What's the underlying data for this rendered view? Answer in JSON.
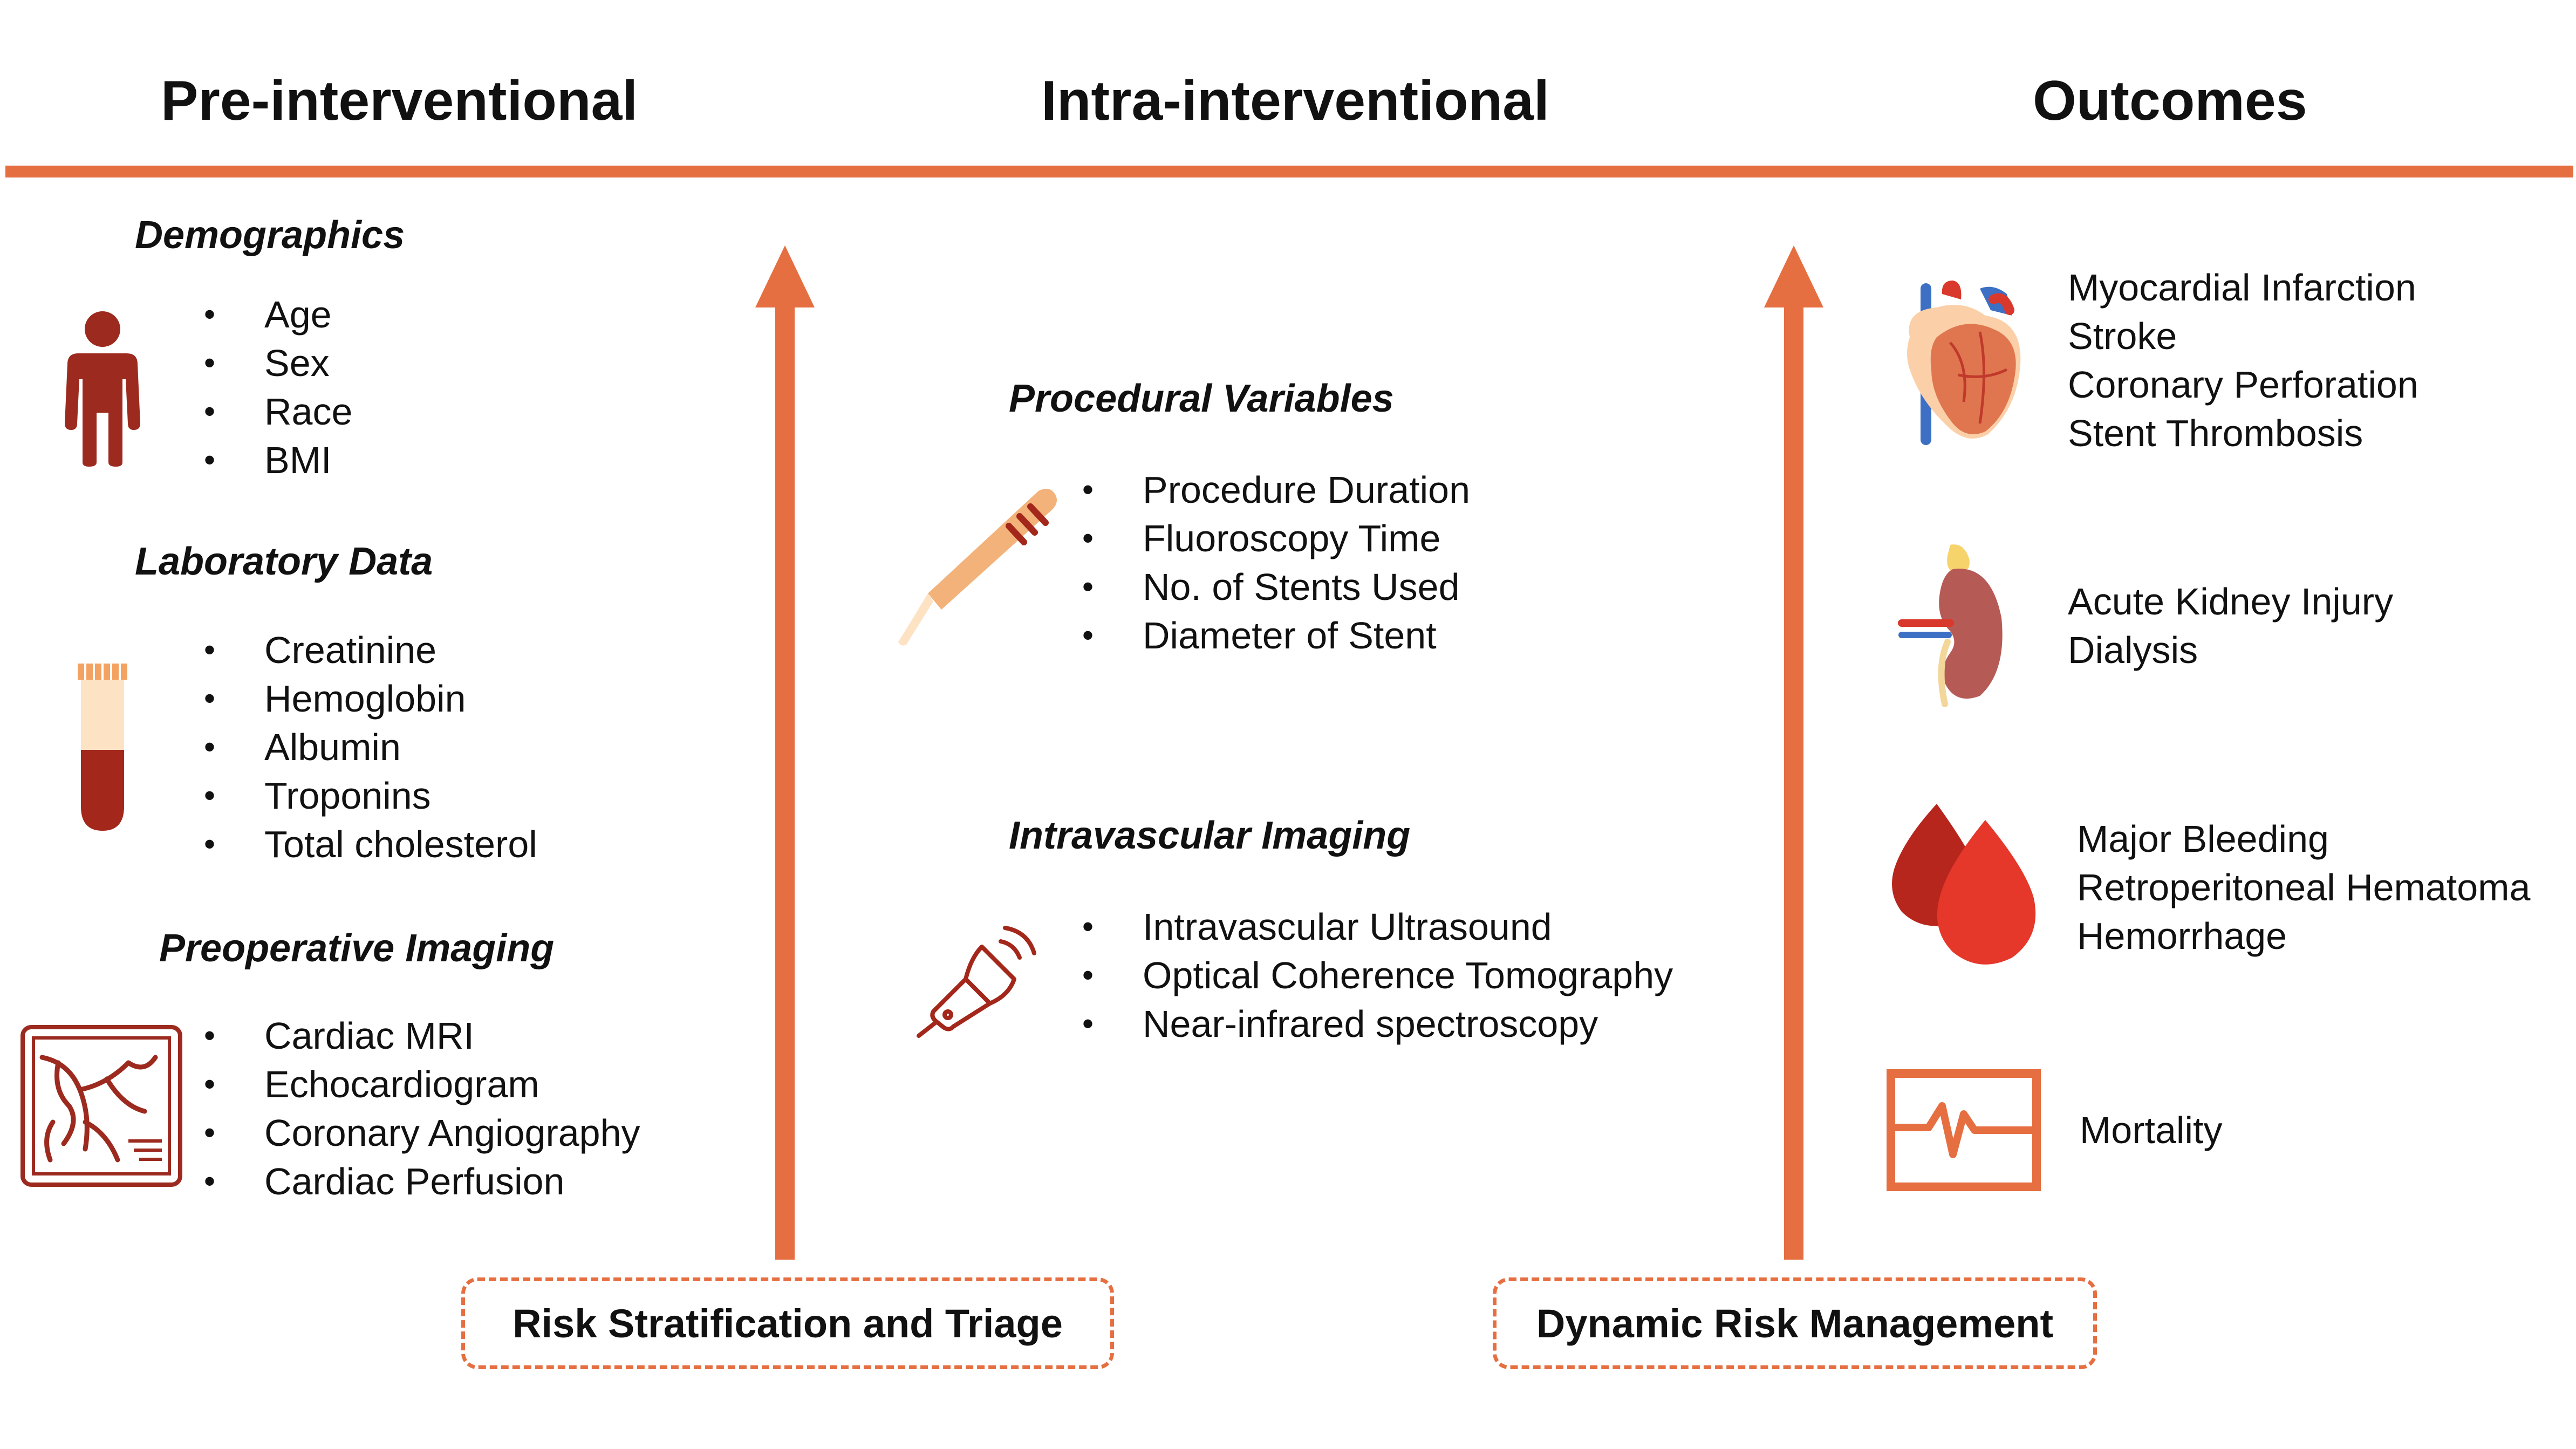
{
  "columns": {
    "pre": "Pre-interventional",
    "intra": "Intra-interventional",
    "outcomes": "Outcomes"
  },
  "pre": {
    "demographics": {
      "title": "Demographics",
      "items": [
        "Age",
        "Sex",
        "Race",
        "BMI"
      ]
    },
    "laboratory": {
      "title": "Laboratory Data",
      "items": [
        "Creatinine",
        "Hemoglobin",
        "Albumin",
        "Troponins",
        "Total cholesterol"
      ]
    },
    "imaging": {
      "title": "Preoperative Imaging",
      "items": [
        "Cardiac MRI",
        "Echocardiogram",
        "Coronary Angiography",
        "Cardiac Perfusion"
      ]
    }
  },
  "intra": {
    "procedural": {
      "title": "Procedural Variables",
      "items": [
        "Procedure Duration",
        "Fluoroscopy Time",
        "No. of Stents Used",
        "Diameter of Stent"
      ]
    },
    "intravascular": {
      "title": "Intravascular Imaging",
      "items": [
        "Intravascular Ultrasound",
        "Optical Coherence Tomography",
        "Near-infrared spectroscopy"
      ]
    }
  },
  "outcomes": {
    "cardiac": [
      "Myocardial Infarction",
      "Stroke",
      "Coronary Perforation",
      "Stent Thrombosis"
    ],
    "renal": [
      "Acute Kidney Injury",
      "Dialysis"
    ],
    "bleeding": [
      "Major Bleeding",
      "Retroperitoneal Hematoma",
      "Hemorrhage"
    ],
    "mortality": [
      "Mortality"
    ]
  },
  "boxes": {
    "left": "Risk Stratification and Triage",
    "right": "Dynamic Risk Management"
  },
  "icons": {
    "person": "person-icon",
    "test_tube": "test-tube-icon",
    "angiogram": "angiogram-image-icon",
    "scalpel": "scalpel-icon",
    "ultrasound": "ultrasound-probe-icon",
    "heart": "heart-icon",
    "kidney": "kidney-icon",
    "blood_drops": "blood-drops-icon",
    "monitor": "heart-monitor-icon"
  },
  "colors": {
    "accent": "#e66f42",
    "icon_dark_red": "#9c2a1f",
    "blood_red": "#d9392c",
    "scalpel_handle": "#f2b27a"
  }
}
